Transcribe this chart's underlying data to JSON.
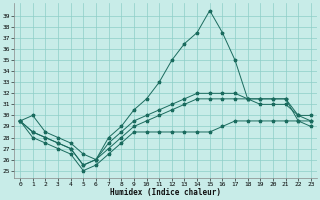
{
  "xlabel": "Humidex (Indice chaleur)",
  "bg_color": "#c8ece8",
  "grid_color": "#8ecec8",
  "line_color": "#1a6b5e",
  "x_ticks": [
    0,
    1,
    2,
    3,
    4,
    5,
    6,
    7,
    8,
    9,
    10,
    11,
    12,
    13,
    14,
    15,
    16,
    17,
    18,
    19,
    20,
    21,
    22,
    23
  ],
  "y_ticks": [
    25,
    26,
    27,
    28,
    29,
    30,
    31,
    32,
    33,
    34,
    35,
    36,
    37,
    38,
    39
  ],
  "ylim": [
    24.3,
    40.2
  ],
  "xlim": [
    -0.5,
    23.5
  ],
  "series": [
    [
      29.5,
      30.0,
      28.5,
      28.0,
      27.5,
      26.5,
      26.0,
      28.0,
      29.0,
      30.5,
      31.5,
      33.0,
      35.0,
      36.5,
      37.5,
      39.5,
      37.5,
      35.0,
      31.5,
      31.5,
      31.5,
      31.5,
      29.5,
      29.5
    ],
    [
      29.5,
      28.5,
      28.0,
      27.5,
      27.0,
      25.5,
      26.0,
      27.5,
      28.5,
      29.5,
      30.0,
      30.5,
      31.0,
      31.5,
      32.0,
      32.0,
      32.0,
      32.0,
      31.5,
      31.5,
      31.5,
      31.5,
      30.0,
      30.0
    ],
    [
      29.5,
      28.5,
      28.0,
      27.5,
      27.0,
      25.5,
      26.0,
      27.0,
      28.0,
      29.0,
      29.5,
      30.0,
      30.5,
      31.0,
      31.5,
      31.5,
      31.5,
      31.5,
      31.5,
      31.0,
      31.0,
      31.0,
      30.0,
      29.5
    ],
    [
      29.5,
      28.0,
      27.5,
      27.0,
      26.5,
      25.0,
      25.5,
      26.5,
      27.5,
      28.5,
      28.5,
      28.5,
      28.5,
      28.5,
      28.5,
      28.5,
      29.0,
      29.5,
      29.5,
      29.5,
      29.5,
      29.5,
      29.5,
      29.0
    ]
  ]
}
